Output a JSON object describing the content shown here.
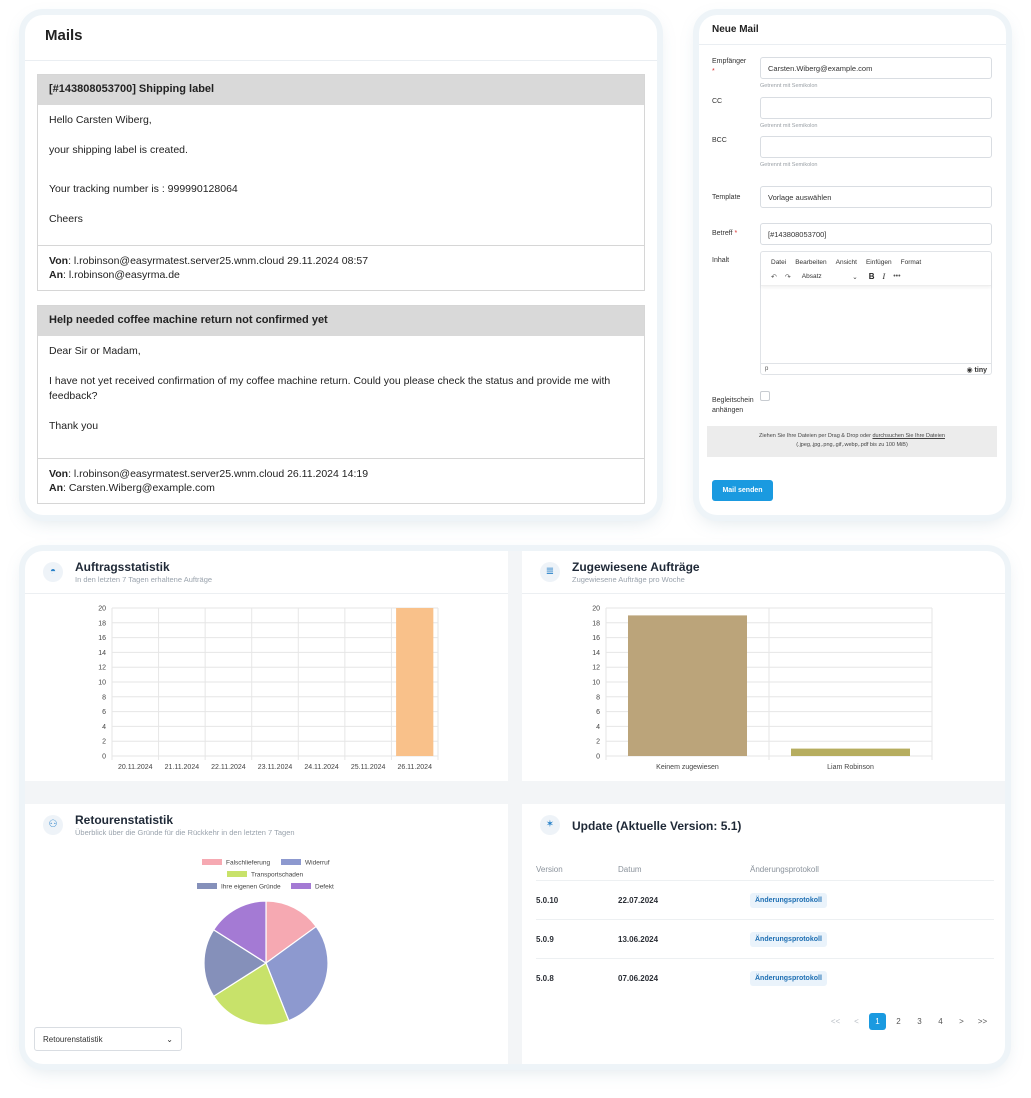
{
  "mails": {
    "title": "Mails",
    "items": [
      {
        "subject": "[#143808053700] Shipping label",
        "body": [
          "Hello Carsten Wiberg,",
          "your shipping label is created.",
          "Your tracking number is : 999990128064",
          "Cheers"
        ],
        "from_label": "Von",
        "from": "l.robinson@easyrmatest.server25.wnm.cloud 29.11.2024 08:57",
        "to_label": "An",
        "to": "l.robinson@easyrma.de"
      },
      {
        "subject": "Help needed coffee machine return not confirmed yet",
        "body": [
          "Dear Sir or Madam,",
          "I have not yet received confirmation of my coffee machine return. Could you please check the status and provide me with feedback?",
          "Thank you"
        ],
        "from_label": "Von",
        "from": "l.robinson@easyrmatest.server25.wnm.cloud 26.11.2024 14:19",
        "to_label": "An",
        "to": "Carsten.Wiberg@example.com"
      }
    ]
  },
  "compose": {
    "title": "Neue Mail",
    "recipient_label": "Empfänger",
    "recipient_value": "Carsten.Wiberg@example.com",
    "hint": "Getrennt mit Semikolon",
    "cc_label": "CC",
    "bcc_label": "BCC",
    "template_label": "Template",
    "template_value": "Vorlage auswählen",
    "subject_label": "Betreff",
    "subject_value": "[#143808053700]",
    "content_label": "Inhalt",
    "editor_menu": [
      "Datei",
      "Bearbeiten",
      "Ansicht",
      "Einfügen",
      "Format"
    ],
    "editor_block": "Absatz",
    "editor_status": "p",
    "editor_brand": "tiny",
    "attach_label": "Begleitschein anhängen",
    "dropzone_text": "Ziehen Sie Ihre Dateien per Drag & Drop oder",
    "dropzone_link": "durchsuchen Sie Ihre Dateien",
    "dropzone_types": "(.jpeg,.jpg,.png,.gif,.webp,.pdf bis zu 100 MiB)",
    "send_label": "Mail senden"
  },
  "auftragsstatistik": {
    "title": "Auftragsstatistik",
    "subtitle": "In den letzten 7 Tagen erhaltene Aufträge"
  },
  "zugewiesene": {
    "title": "Zugewiesene Aufträge",
    "subtitle": "Zugewiesene Aufträge pro Woche"
  },
  "retouren": {
    "title": "Retourenstatistik",
    "subtitle": "Überblick über die Gründe für die Rückkehr in den letzten 7 Tagen",
    "select_value": "Retourenstatistik"
  },
  "update": {
    "title": "Update (Aktuelle Version: 5.1)",
    "columns": [
      "Version",
      "Datum",
      "Änderungsprotokoll"
    ],
    "rows": [
      {
        "version": "5.0.10",
        "date": "22.07.2024",
        "action": "Änderungsprotokoll"
      },
      {
        "version": "5.0.9",
        "date": "13.06.2024",
        "action": "Änderungsprotokoll"
      },
      {
        "version": "5.0.8",
        "date": "07.06.2024",
        "action": "Änderungsprotokoll"
      }
    ],
    "pager": [
      "<<",
      "<",
      "1",
      "2",
      "3",
      "4",
      ">",
      ">>"
    ],
    "active_page": "1"
  },
  "chart_data": [
    {
      "type": "bar",
      "categories": [
        "20.11.2024",
        "21.11.2024",
        "22.11.2024",
        "23.11.2024",
        "24.11.2024",
        "25.11.2024",
        "26.11.2024"
      ],
      "values": [
        0,
        0,
        0,
        0,
        0,
        0,
        20
      ],
      "ylim": [
        0,
        20
      ],
      "yticks": [
        0,
        2,
        4,
        6,
        8,
        10,
        12,
        14,
        16,
        18,
        20
      ],
      "grid": true,
      "color": "#f9c18a"
    },
    {
      "type": "bar",
      "categories": [
        "Keinem zugewiesen",
        "Liam Robinson"
      ],
      "values": [
        19,
        1
      ],
      "ylim": [
        0,
        20
      ],
      "yticks": [
        0,
        2,
        4,
        6,
        8,
        10,
        12,
        14,
        16,
        18,
        20
      ],
      "grid": true,
      "colors": [
        "#bba47a",
        "#b6ad5f"
      ]
    },
    {
      "type": "pie",
      "legend_position": "top",
      "slices": [
        {
          "label": "Falschlieferung",
          "value": 15,
          "color": "#f6a9b2"
        },
        {
          "label": "Widerruf",
          "value": 29,
          "color": "#8d99cf"
        },
        {
          "label": "Transportschaden",
          "value": 22,
          "color": "#c8e26a"
        },
        {
          "label": "Ihre eigenen Gründe",
          "value": 18,
          "color": "#8590ba"
        },
        {
          "label": "Defekt",
          "value": 16,
          "color": "#a47ad4"
        }
      ]
    }
  ]
}
